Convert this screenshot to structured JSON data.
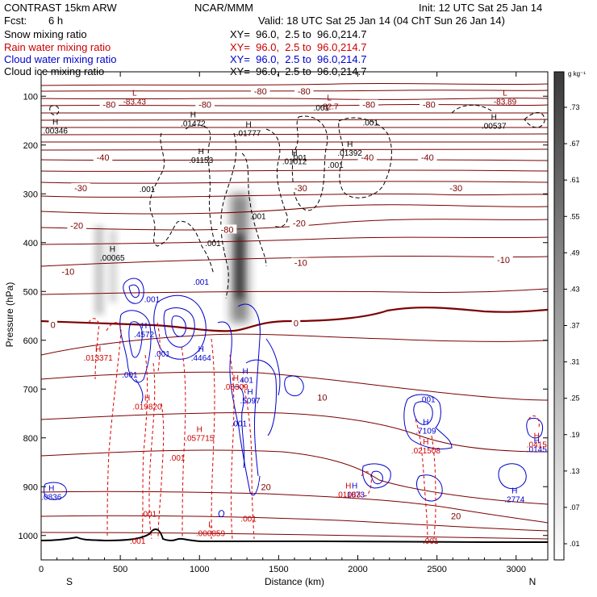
{
  "header": {
    "model": "CONTRAST 15km ARW",
    "org": "NCAR/MMM",
    "init": "Init: 12 UTC Sat 25 Jan 14",
    "fcst_label": "Fcst:",
    "fcst_value": "6 h",
    "valid": "Valid: 18 UTC Sat 25 Jan 14 (04 ChT Sun 26 Jan 14)",
    "fields": [
      {
        "name": "Snow mixing ratio",
        "xy": "XY=  96.0,  2.5 to  96.0,214.7",
        "color": "#000000"
      },
      {
        "name": "Rain water mixing ratio",
        "xy": "XY=  96.0,  2.5 to  96.0,214.7",
        "color": "#cc0000"
      },
      {
        "name": "Cloud water mixing ratio",
        "xy": "XY=  96.0,  2.5 to  96.0,214.7",
        "color": "#0000cc"
      },
      {
        "name": "Cloud ice mixing ratio",
        "xy": "XY=  96.0,  2.5 to  96.0,214.7",
        "color": "#000000"
      }
    ]
  },
  "colorbar": {
    "unit": "g kg⁻¹",
    "levels": [
      ".01",
      ".07",
      ".13",
      ".19",
      ".25",
      ".31",
      ".37",
      ".43",
      ".49",
      ".55",
      ".61",
      ".67",
      ".73"
    ]
  },
  "chart_data": {
    "type": "cross-section",
    "xlabel": "Distance (km)",
    "ylabel": "Pressure (hPa)",
    "xlim": [
      0,
      3200
    ],
    "ylim": [
      1050,
      50
    ],
    "x_ticks": [
      "0",
      "500",
      "1000",
      "1500",
      "2000",
      "2500",
      "3000"
    ],
    "y_ticks": [
      "100",
      "200",
      "300",
      "400",
      "500",
      "600",
      "700",
      "800",
      "900",
      "1000"
    ],
    "x_end_labels": {
      "left": "S",
      "right": "N"
    },
    "isotherm_labels": [
      {
        "t": "-80",
        "x": 430,
        "p": 117
      },
      {
        "t": "-80",
        "x": 1035,
        "p": 117
      },
      {
        "t": "-80",
        "x": 1385,
        "p": 90
      },
      {
        "t": "-80",
        "x": 1660,
        "p": 90
      },
      {
        "t": "-80",
        "x": 2070,
        "p": 117
      },
      {
        "t": "-80",
        "x": 2450,
        "p": 117
      },
      {
        "t": "-80",
        "x": 1175,
        "p": 373
      },
      {
        "t": "-40",
        "x": 390,
        "p": 225
      },
      {
        "t": "-40",
        "x": 2060,
        "p": 225
      },
      {
        "t": "-40",
        "x": 2440,
        "p": 225
      },
      {
        "t": "-30",
        "x": 250,
        "p": 288
      },
      {
        "t": "-30",
        "x": 1640,
        "p": 288
      },
      {
        "t": "-30",
        "x": 2620,
        "p": 288
      },
      {
        "t": "-20",
        "x": 225,
        "p": 365
      },
      {
        "t": "-20",
        "x": 1630,
        "p": 360
      },
      {
        "t": "-10",
        "x": 170,
        "p": 459
      },
      {
        "t": "-10",
        "x": 1640,
        "p": 441
      },
      {
        "t": "-10",
        "x": 2920,
        "p": 435
      },
      {
        "t": "0",
        "x": 75,
        "p": 568
      },
      {
        "t": "0",
        "x": 1610,
        "p": 565
      },
      {
        "t": "10",
        "x": 1775,
        "p": 717
      },
      {
        "t": "20",
        "x": 1420,
        "p": 900
      },
      {
        "t": "20",
        "x": 2620,
        "p": 960
      }
    ],
    "extrema": [
      {
        "type": "L",
        "value": "-83.43",
        "x": 590,
        "p": 105,
        "color": "#8b0000"
      },
      {
        "type": "L",
        "value": "-82.7",
        "x": 1820,
        "p": 115,
        "color": "#8b0000"
      },
      {
        "type": "L",
        "value": "-83.89",
        "x": 2930,
        "p": 105,
        "color": "#8b0000"
      },
      {
        "type": "H",
        "value": ".00346",
        "x": 90,
        "p": 165,
        "color": "#000000"
      },
      {
        "type": "H",
        "value": ".01472",
        "x": 960,
        "p": 150,
        "color": "#000000"
      },
      {
        "type": "H",
        "value": ".01777",
        "x": 1310,
        "p": 170,
        "color": "#000000"
      },
      {
        "type": "H",
        "value": ".01153",
        "x": 1010,
        "p": 225,
        "color": "#000000"
      },
      {
        "type": "H",
        "value": ".01012",
        "x": 1600,
        "p": 228,
        "color": "#000000"
      },
      {
        "type": "H",
        "value": ".01392",
        "x": 1950,
        "p": 210,
        "color": "#000000"
      },
      {
        "type": "H",
        "value": ".00537",
        "x": 2860,
        "p": 155,
        "color": "#000000"
      },
      {
        "type": "H",
        "value": ".00065",
        "x": 450,
        "p": 425,
        "color": "#000000"
      },
      {
        "type": "H",
        "value": ".4572",
        "x": 650,
        "p": 582,
        "color": "#0000cc"
      },
      {
        "type": "H",
        "value": ".4464",
        "x": 1010,
        "p": 630,
        "color": "#0000cc"
      },
      {
        "type": "H",
        "value": ".401",
        "x": 1290,
        "p": 676,
        "color": "#0000cc"
      },
      {
        "type": "H",
        "value": ".5097",
        "x": 1320,
        "p": 718,
        "color": "#0000cc"
      },
      {
        "type": "H",
        "value": ".7109",
        "x": 2430,
        "p": 780,
        "color": "#0000cc"
      },
      {
        "type": "H",
        "value": ".2774",
        "x": 2990,
        "p": 920,
        "color": "#0000cc"
      },
      {
        "type": "H",
        "value": ".0836",
        "x": 65,
        "p": 915,
        "color": "#0000cc"
      },
      {
        "type": "H",
        "value": ".1073",
        "x": 1980,
        "p": 910,
        "color": "#0000cc"
      },
      {
        "type": "H",
        "value": ".0145",
        "x": 3130,
        "p": 818,
        "color": "#0000cc"
      },
      {
        "type": "H",
        "value": ".013371",
        "x": 360,
        "p": 630,
        "color": "#cc0000"
      },
      {
        "type": "H",
        "value": ".019820",
        "x": 670,
        "p": 730,
        "color": "#cc0000"
      },
      {
        "type": "H",
        "value": ".057715",
        "x": 1000,
        "p": 795,
        "color": "#cc0000"
      },
      {
        "type": "H",
        "value": ".08309",
        "x": 1230,
        "p": 690,
        "color": "#cc0000"
      },
      {
        "type": "H",
        "value": ".021508",
        "x": 2430,
        "p": 820,
        "color": "#cc0000"
      },
      {
        "type": "H",
        "value": ".01083",
        "x": 1940,
        "p": 910,
        "color": "#cc0000"
      },
      {
        "type": "H",
        "value": ".0415",
        "x": 3130,
        "p": 808,
        "color": "#cc0000"
      },
      {
        "type": "L",
        "value": ".000859",
        "x": 1070,
        "p": 990,
        "color": "#cc0000"
      }
    ],
    "value_labels": [
      {
        "t": ".001",
        "x": 1770,
        "p": 123,
        "color": "#000000"
      },
      {
        "t": ".001",
        "x": 2080,
        "p": 153,
        "color": "#000000"
      },
      {
        "t": ".001",
        "x": 1630,
        "p": 225,
        "color": "#000000"
      },
      {
        "t": ".001",
        "x": 1860,
        "p": 240,
        "color": "#000000"
      },
      {
        "t": ".001",
        "x": 670,
        "p": 290,
        "color": "#000000"
      },
      {
        "t": ".001",
        "x": 1370,
        "p": 345,
        "color": "#000000"
      },
      {
        "t": ".001",
        "x": 1085,
        "p": 400,
        "color": "#000000"
      },
      {
        "t": ".001",
        "x": 700,
        "p": 515,
        "color": "#0000cc"
      },
      {
        "t": ".001",
        "x": 1010,
        "p": 480,
        "color": "#0000cc"
      },
      {
        "t": ".001",
        "x": 560,
        "p": 670,
        "color": "#0000cc"
      },
      {
        "t": ".001",
        "x": 765,
        "p": 627,
        "color": "#0000cc"
      },
      {
        "t": ".001",
        "x": 1250,
        "p": 770,
        "color": "#0000cc"
      },
      {
        "t": ".001",
        "x": 2440,
        "p": 720,
        "color": "#0000cc"
      },
      {
        "t": ".001",
        "x": 860,
        "p": 840,
        "color": "#cc0000"
      },
      {
        "t": ".001",
        "x": 680,
        "p": 955,
        "color": "#cc0000"
      },
      {
        "t": ".001",
        "x": 1310,
        "p": 965,
        "color": "#cc0000"
      },
      {
        "t": ".001",
        "x": 2460,
        "p": 1010,
        "color": "#cc0000"
      },
      {
        "t": ".001",
        "x": 610,
        "p": 1010,
        "color": "#cc0000"
      }
    ],
    "grid": false,
    "colorbar_range": [
      0.01,
      0.73
    ]
  }
}
